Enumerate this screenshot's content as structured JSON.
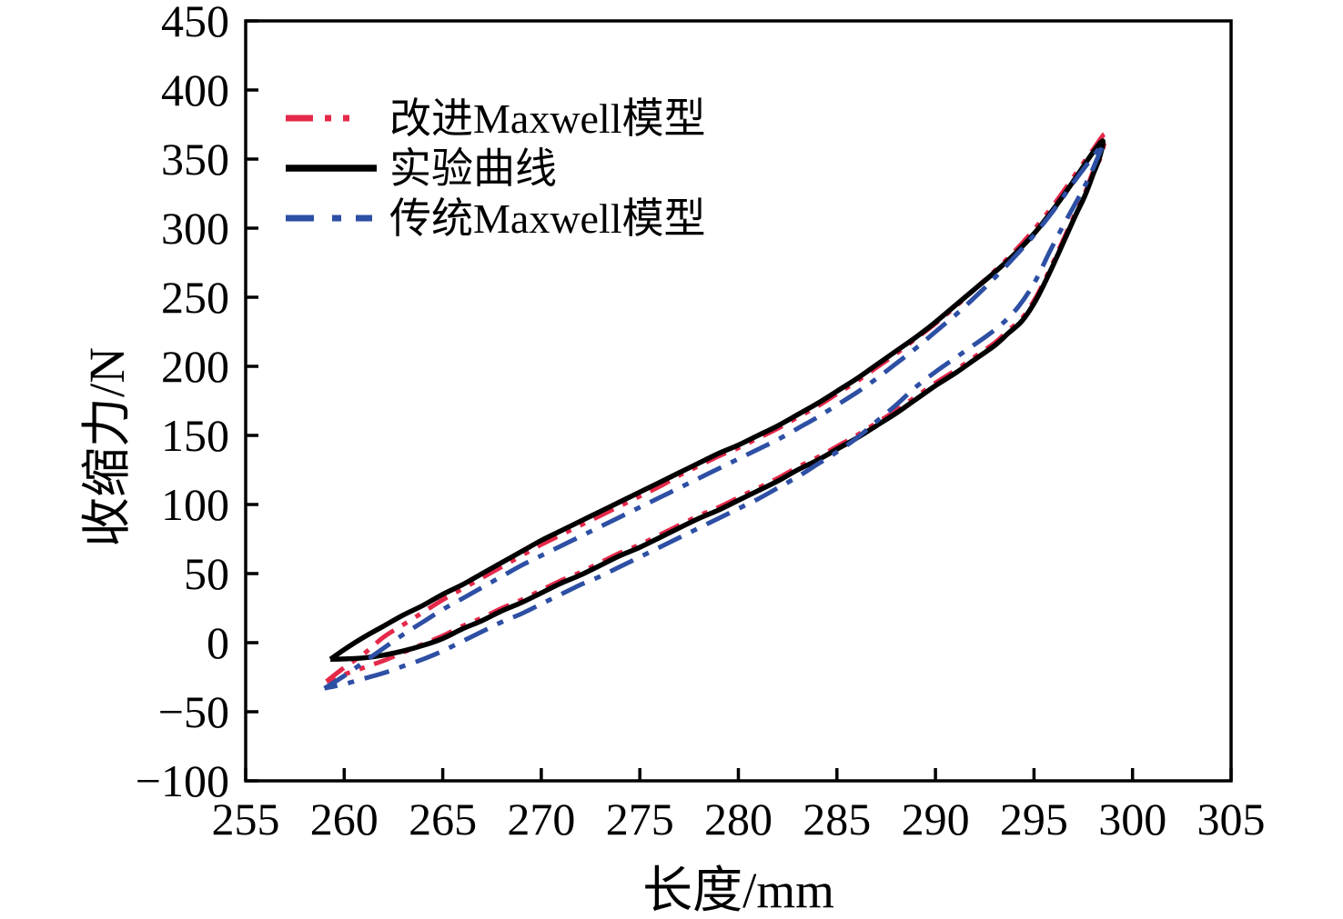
{
  "page": {
    "background": "#ffffff",
    "axis_color": "#000000"
  },
  "chart_data": {
    "type": "line",
    "title": "",
    "xlabel": "长度/mm",
    "ylabel": "收缩力/N",
    "xlim": [
      255,
      305
    ],
    "ylim": [
      -100,
      450
    ],
    "x_ticks": [
      255,
      260,
      265,
      270,
      275,
      280,
      285,
      290,
      295,
      300,
      305
    ],
    "y_ticks": [
      -100,
      -50,
      0,
      50,
      100,
      150,
      200,
      250,
      300,
      350,
      400,
      450
    ],
    "grid": false,
    "legend_position": "upper-left",
    "series": [
      {
        "name": "改进Maxwell模型",
        "color": "#e5294a",
        "style": "dash-dot-dot",
        "dash": [
          24,
          11,
          6,
          11,
          6,
          11
        ],
        "legend_dash": [
          30,
          13,
          7,
          13,
          7,
          999
        ],
        "width": 5,
        "points": [
          [
            259.1,
            -28
          ],
          [
            260,
            -18
          ],
          [
            261,
            -8
          ],
          [
            262,
            4
          ],
          [
            263,
            13
          ],
          [
            264,
            22
          ],
          [
            265,
            31
          ],
          [
            266,
            39
          ],
          [
            267,
            47
          ],
          [
            268,
            55
          ],
          [
            269,
            63
          ],
          [
            270,
            71
          ],
          [
            271,
            78
          ],
          [
            272,
            85
          ],
          [
            273,
            92
          ],
          [
            274,
            99
          ],
          [
            275,
            106
          ],
          [
            276,
            113
          ],
          [
            277,
            121
          ],
          [
            278,
            128
          ],
          [
            279,
            135
          ],
          [
            280,
            141
          ],
          [
            281,
            148
          ],
          [
            282,
            155
          ],
          [
            283,
            163
          ],
          [
            284,
            171
          ],
          [
            285,
            180
          ],
          [
            286,
            189
          ],
          [
            287,
            199
          ],
          [
            288,
            209
          ],
          [
            289,
            220
          ],
          [
            290,
            231
          ],
          [
            291,
            243
          ],
          [
            292,
            256
          ],
          [
            293,
            269
          ],
          [
            294,
            283
          ],
          [
            295,
            299
          ],
          [
            296,
            317
          ],
          [
            297,
            337
          ],
          [
            298,
            357
          ],
          [
            298.6,
            368
          ],
          [
            298.4,
            352
          ],
          [
            298.0,
            341
          ],
          [
            297.6,
            326
          ],
          [
            297.1,
            311
          ],
          [
            296.5,
            292
          ],
          [
            295.8,
            270
          ],
          [
            295.1,
            250
          ],
          [
            294.4,
            235
          ],
          [
            293.7,
            226
          ],
          [
            293,
            217
          ],
          [
            292,
            207
          ],
          [
            291,
            197
          ],
          [
            290,
            188
          ],
          [
            289,
            178
          ],
          [
            288,
            168
          ],
          [
            287,
            159
          ],
          [
            286,
            150
          ],
          [
            285,
            142
          ],
          [
            284,
            134
          ],
          [
            283,
            127
          ],
          [
            282,
            119
          ],
          [
            281,
            112
          ],
          [
            280,
            105
          ],
          [
            279,
            98
          ],
          [
            278,
            92
          ],
          [
            277,
            85
          ],
          [
            276,
            78
          ],
          [
            275,
            71
          ],
          [
            274,
            65
          ],
          [
            273,
            58
          ],
          [
            272,
            51
          ],
          [
            271,
            45
          ],
          [
            270,
            38
          ],
          [
            269,
            31
          ],
          [
            268,
            25
          ],
          [
            267,
            18
          ],
          [
            266,
            12
          ],
          [
            265,
            5
          ],
          [
            264,
            -1
          ],
          [
            263,
            -7
          ],
          [
            262,
            -13
          ],
          [
            261,
            -18
          ],
          [
            260,
            -23
          ],
          [
            259.1,
            -28
          ]
        ]
      },
      {
        "name": "实验曲线",
        "color": "#000000",
        "style": "solid",
        "dash": [],
        "legend_dash": [],
        "width": 5.5,
        "points": [
          [
            259.3,
            -12
          ],
          [
            260,
            -5
          ],
          [
            261,
            4
          ],
          [
            262,
            12
          ],
          [
            263,
            20
          ],
          [
            264,
            27
          ],
          [
            265,
            35
          ],
          [
            266,
            42
          ],
          [
            267,
            50
          ],
          [
            268,
            58
          ],
          [
            269,
            66
          ],
          [
            270,
            74
          ],
          [
            271,
            81
          ],
          [
            272,
            88
          ],
          [
            273,
            95
          ],
          [
            274,
            102
          ],
          [
            275,
            109
          ],
          [
            276,
            116
          ],
          [
            277,
            123
          ],
          [
            278,
            130
          ],
          [
            279,
            137
          ],
          [
            280,
            143
          ],
          [
            281,
            150
          ],
          [
            282,
            157
          ],
          [
            283,
            165
          ],
          [
            284,
            173
          ],
          [
            285,
            182
          ],
          [
            286,
            191
          ],
          [
            287,
            201
          ],
          [
            288,
            211
          ],
          [
            289,
            221
          ],
          [
            290,
            232
          ],
          [
            291,
            244
          ],
          [
            292,
            256
          ],
          [
            293,
            268
          ],
          [
            294,
            281
          ],
          [
            295,
            296
          ],
          [
            296,
            314
          ],
          [
            297,
            334
          ],
          [
            298,
            355
          ],
          [
            298.5,
            363
          ],
          [
            298.3,
            350
          ],
          [
            298.0,
            339
          ],
          [
            297.6,
            324
          ],
          [
            297.1,
            309
          ],
          [
            296.5,
            290
          ],
          [
            295.8,
            268
          ],
          [
            295.1,
            248
          ],
          [
            294.4,
            233
          ],
          [
            293.7,
            224
          ],
          [
            293,
            215
          ],
          [
            292,
            205
          ],
          [
            291,
            195
          ],
          [
            290,
            186
          ],
          [
            289,
            176
          ],
          [
            288,
            166
          ],
          [
            287,
            157
          ],
          [
            286,
            148
          ],
          [
            285,
            140
          ],
          [
            284,
            132
          ],
          [
            283,
            125
          ],
          [
            282,
            117
          ],
          [
            281,
            110
          ],
          [
            280,
            103
          ],
          [
            279,
            96
          ],
          [
            278,
            90
          ],
          [
            277,
            83
          ],
          [
            276,
            76
          ],
          [
            275,
            69
          ],
          [
            274,
            63
          ],
          [
            273,
            56
          ],
          [
            272,
            49
          ],
          [
            271,
            43
          ],
          [
            270,
            36
          ],
          [
            269,
            29
          ],
          [
            268,
            23
          ],
          [
            267,
            16
          ],
          [
            266,
            10
          ],
          [
            265,
            3
          ],
          [
            264,
            -2
          ],
          [
            263,
            -6
          ],
          [
            262,
            -9
          ],
          [
            261,
            -11
          ],
          [
            260,
            -11.8
          ],
          [
            259.3,
            -12
          ]
        ]
      },
      {
        "name": "传统Maxwell模型",
        "color": "#2d4fa4",
        "style": "dash-dot",
        "dash": [
          28,
          12,
          7,
          12
        ],
        "legend_dash": [
          31,
          20,
          10,
          16,
          18,
          999
        ],
        "width": 5,
        "points": [
          [
            259.0,
            -33
          ],
          [
            260,
            -24
          ],
          [
            261,
            -14
          ],
          [
            262,
            -4
          ],
          [
            263,
            6
          ],
          [
            264,
            15
          ],
          [
            265,
            24
          ],
          [
            266,
            32
          ],
          [
            267,
            40
          ],
          [
            268,
            48
          ],
          [
            269,
            56
          ],
          [
            270,
            63
          ],
          [
            271,
            70
          ],
          [
            272,
            77
          ],
          [
            273,
            84
          ],
          [
            274,
            91
          ],
          [
            275,
            98
          ],
          [
            276,
            105
          ],
          [
            277,
            112
          ],
          [
            278,
            119
          ],
          [
            279,
            126
          ],
          [
            280,
            133
          ],
          [
            281,
            140
          ],
          [
            282,
            147
          ],
          [
            283,
            155
          ],
          [
            284,
            163
          ],
          [
            285,
            172
          ],
          [
            286,
            181
          ],
          [
            287,
            191
          ],
          [
            288,
            202
          ],
          [
            289,
            213
          ],
          [
            290,
            225
          ],
          [
            291,
            237
          ],
          [
            292,
            250
          ],
          [
            293,
            264
          ],
          [
            294,
            279
          ],
          [
            295,
            295
          ],
          [
            296,
            313
          ],
          [
            297,
            333
          ],
          [
            298,
            352
          ],
          [
            298.5,
            361
          ],
          [
            298.2,
            350
          ],
          [
            297.8,
            337
          ],
          [
            297.3,
            323
          ],
          [
            296.6,
            305
          ],
          [
            295.8,
            283
          ],
          [
            295,
            260
          ],
          [
            294.2,
            243
          ],
          [
            293.4,
            231
          ],
          [
            292.6,
            222
          ],
          [
            291.8,
            214
          ],
          [
            291,
            206
          ],
          [
            290,
            196
          ],
          [
            289,
            185
          ],
          [
            288,
            172
          ],
          [
            287,
            160
          ],
          [
            286,
            148
          ],
          [
            285,
            138
          ],
          [
            284,
            129
          ],
          [
            283,
            120
          ],
          [
            282,
            112
          ],
          [
            281,
            104
          ],
          [
            280,
            97
          ],
          [
            279,
            90
          ],
          [
            278,
            83
          ],
          [
            277,
            76
          ],
          [
            276,
            69
          ],
          [
            275,
            62
          ],
          [
            274,
            55
          ],
          [
            273,
            48
          ],
          [
            272,
            42
          ],
          [
            271,
            35
          ],
          [
            270,
            28
          ],
          [
            269,
            21
          ],
          [
            268,
            15
          ],
          [
            267,
            8
          ],
          [
            266,
            1
          ],
          [
            265,
            -6
          ],
          [
            264,
            -12
          ],
          [
            263,
            -17
          ],
          [
            262,
            -22
          ],
          [
            261,
            -26
          ],
          [
            260,
            -30
          ],
          [
            259.0,
            -33
          ]
        ]
      }
    ]
  }
}
